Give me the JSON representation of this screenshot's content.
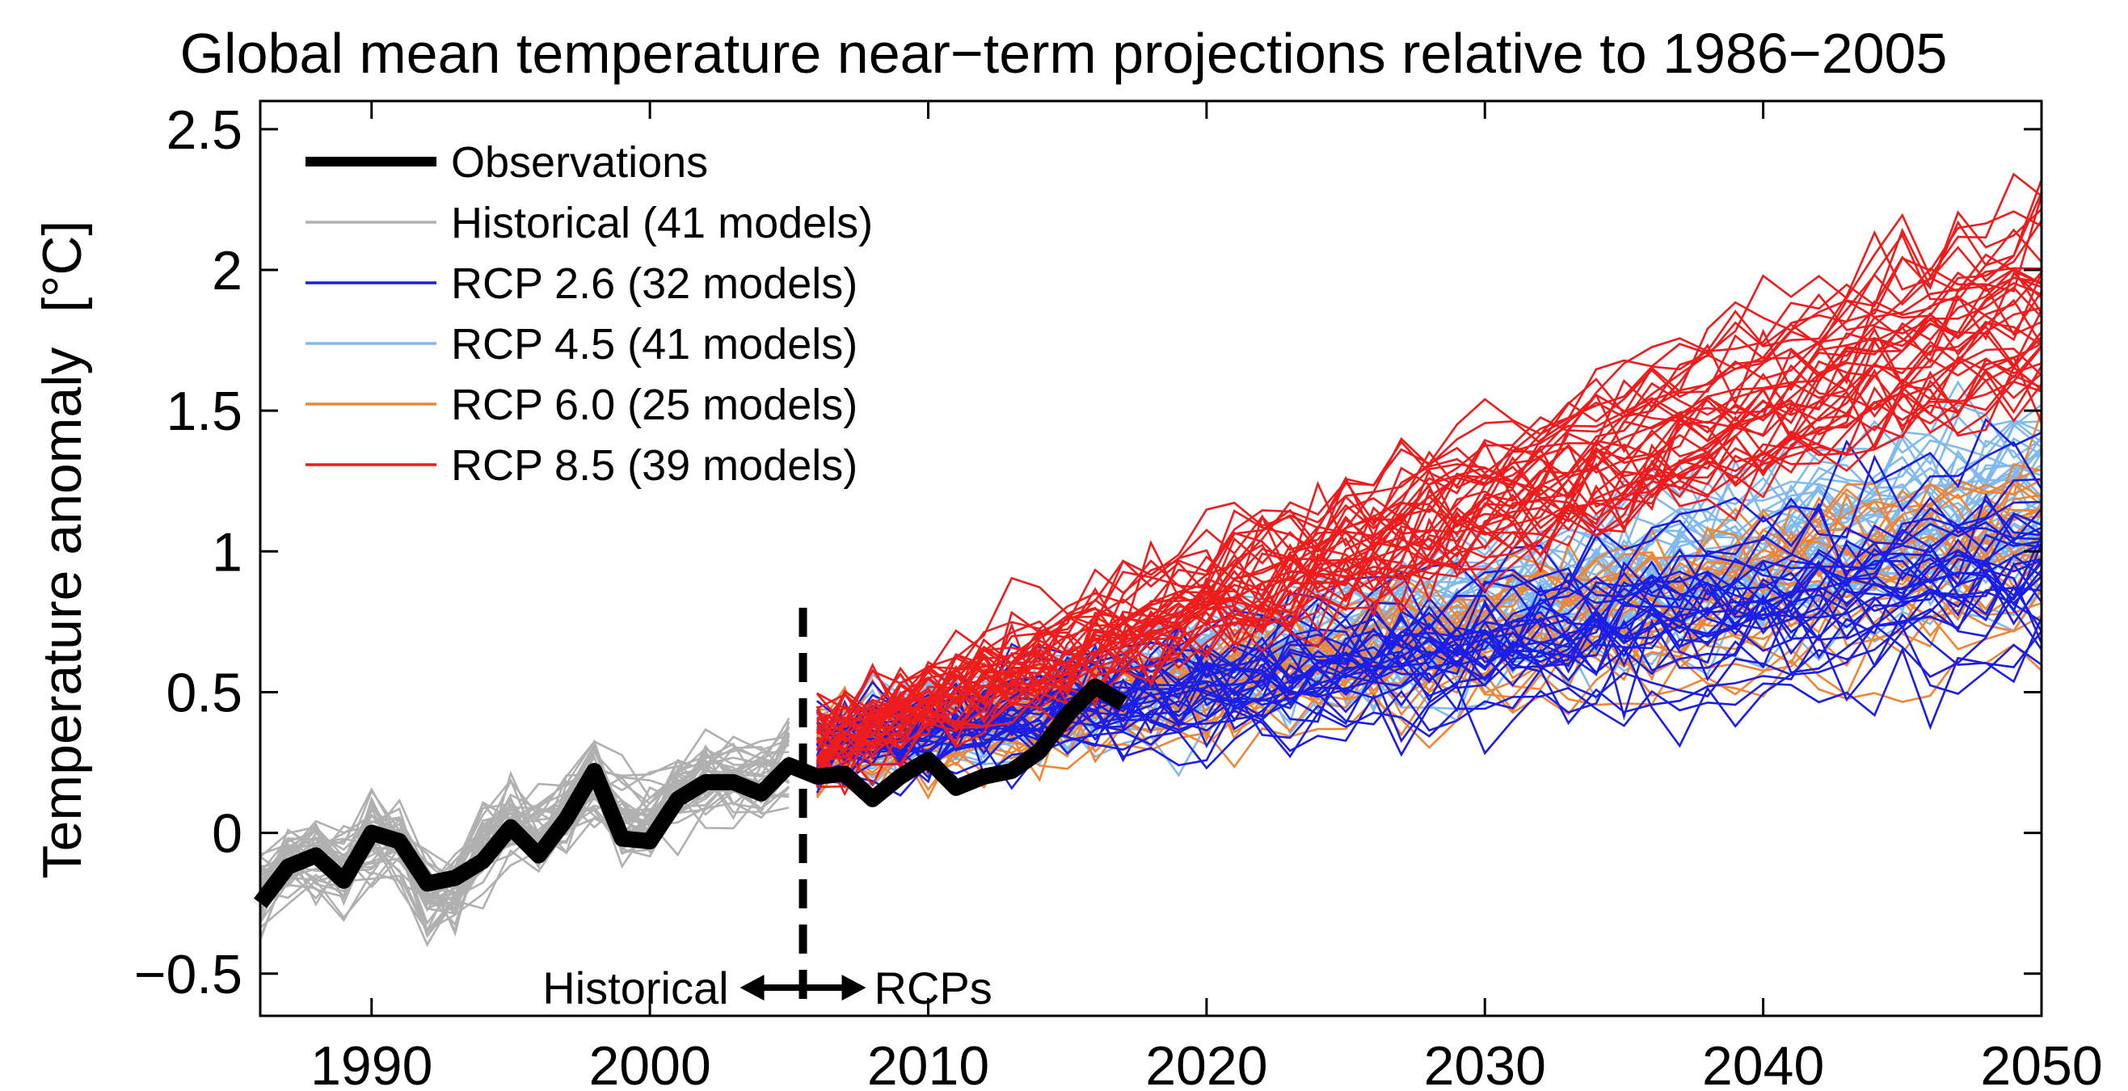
{
  "chart_data": {
    "type": "line",
    "title": "Global mean temperature near−term projections relative to 1986−2005",
    "ylabel": "Temperature anomaly",
    "ylabel_unit": "[°C]",
    "xlim": [
      1986,
      2050
    ],
    "ylim": [
      -0.65,
      2.6
    ],
    "x_ticks": [
      1990,
      2000,
      2010,
      2020,
      2030,
      2040,
      2050
    ],
    "y_ticks": [
      -0.5,
      0,
      0.5,
      1,
      1.5,
      2,
      2.5
    ],
    "y_tick_labels": [
      "−0.5",
      "0",
      "0.5",
      "1",
      "1.5",
      "2",
      "2.5"
    ],
    "grid": false,
    "legend_position": "top-left",
    "divider_year": 2005.5,
    "annotations": {
      "left": "Historical",
      "right": "RCPs"
    },
    "series": [
      {
        "name": "Observations",
        "color": "#000000",
        "x": [
          1986,
          1987,
          1988,
          1989,
          1990,
          1991,
          1992,
          1993,
          1994,
          1995,
          1996,
          1997,
          1998,
          1999,
          2000,
          2001,
          2002,
          2003,
          2004,
          2005,
          2006,
          2007,
          2008,
          2009,
          2010,
          2011,
          2012,
          2013,
          2014,
          2015,
          2016,
          2017
        ],
        "values": [
          -0.25,
          -0.12,
          -0.08,
          -0.17,
          0.0,
          -0.03,
          -0.18,
          -0.16,
          -0.1,
          0.02,
          -0.08,
          0.05,
          0.22,
          -0.02,
          -0.03,
          0.12,
          0.18,
          0.18,
          0.14,
          0.24,
          0.2,
          0.21,
          0.12,
          0.2,
          0.26,
          0.16,
          0.2,
          0.22,
          0.29,
          0.42,
          0.52,
          0.46
        ]
      },
      {
        "name": "Historical (41 models)",
        "color": "#b0b0b0",
        "model_count": 41,
        "period": [
          1986,
          2005
        ],
        "mean_start": -0.15,
        "mean_end": 0.25
      },
      {
        "name": "RCP 2.6 (32 models)",
        "color": "#1a1ee6",
        "model_count": 32,
        "period": [
          2006,
          2050
        ],
        "mean_start": 0.3,
        "mean_end": 0.95
      },
      {
        "name": "RCP 4.5 (41 models)",
        "color": "#7fb9f0",
        "model_count": 41,
        "period": [
          2006,
          2050
        ],
        "mean_start": 0.3,
        "mean_end": 1.2
      },
      {
        "name": "RCP 6.0 (25 models)",
        "color": "#f08533",
        "model_count": 25,
        "period": [
          2006,
          2050
        ],
        "mean_start": 0.3,
        "mean_end": 1.05
      },
      {
        "name": "RCP 8.5 (39 models)",
        "color": "#ee1c1c",
        "model_count": 39,
        "period": [
          2006,
          2050
        ],
        "mean_start": 0.32,
        "mean_end": 1.85
      }
    ]
  }
}
